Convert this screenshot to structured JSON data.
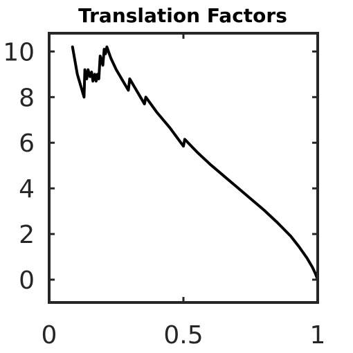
{
  "chart_data": {
    "type": "line",
    "title": "Translation Factors",
    "xlabel": "",
    "ylabel": "",
    "xlim": [
      0,
      1
    ],
    "ylim": [
      -1,
      10.8
    ],
    "xticks": [
      0,
      0.5,
      1
    ],
    "xtick_labels": [
      "0",
      "0.5",
      "1"
    ],
    "yticks": [
      0,
      2,
      4,
      6,
      8,
      10
    ],
    "ytick_labels": [
      "0",
      "2",
      "4",
      "6",
      "8",
      "10"
    ],
    "grid": false,
    "series": [
      {
        "color": "#000000",
        "points": [
          [
            0.087,
            10.2
          ],
          [
            0.105,
            9.0
          ],
          [
            0.13,
            8.0
          ],
          [
            0.133,
            9.2
          ],
          [
            0.14,
            8.8
          ],
          [
            0.145,
            9.2
          ],
          [
            0.152,
            8.9
          ],
          [
            0.158,
            9.1
          ],
          [
            0.163,
            8.7
          ],
          [
            0.17,
            9.0
          ],
          [
            0.175,
            8.7
          ],
          [
            0.18,
            9.0
          ],
          [
            0.185,
            8.8
          ],
          [
            0.19,
            9.8
          ],
          [
            0.2,
            9.4
          ],
          [
            0.205,
            10.1
          ],
          [
            0.21,
            9.9
          ],
          [
            0.215,
            10.2
          ],
          [
            0.23,
            9.7
          ],
          [
            0.25,
            9.2
          ],
          [
            0.27,
            8.8
          ],
          [
            0.295,
            8.3
          ],
          [
            0.3,
            8.8
          ],
          [
            0.32,
            8.4
          ],
          [
            0.34,
            8.0
          ],
          [
            0.355,
            7.7
          ],
          [
            0.36,
            8.0
          ],
          [
            0.4,
            7.35
          ],
          [
            0.45,
            6.65
          ],
          [
            0.5,
            5.85
          ],
          [
            0.505,
            6.15
          ],
          [
            0.55,
            5.6
          ],
          [
            0.6,
            5.05
          ],
          [
            0.65,
            4.55
          ],
          [
            0.7,
            4.05
          ],
          [
            0.75,
            3.55
          ],
          [
            0.8,
            3.05
          ],
          [
            0.85,
            2.5
          ],
          [
            0.9,
            1.9
          ],
          [
            0.93,
            1.45
          ],
          [
            0.96,
            0.95
          ],
          [
            0.98,
            0.55
          ],
          [
            0.992,
            0.25
          ],
          [
            1.0,
            0.0
          ]
        ]
      }
    ]
  }
}
